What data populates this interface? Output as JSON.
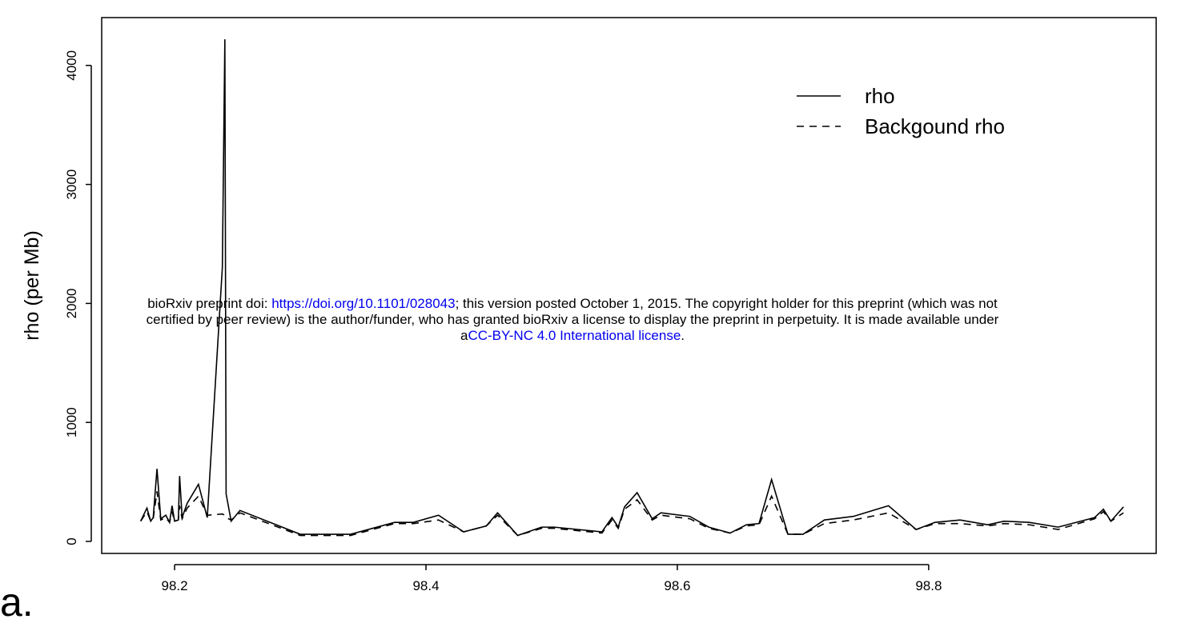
{
  "chart_data": {
    "type": "line",
    "y_label": "rho (per Mb)",
    "panel_label": "a.",
    "xlim": [
      98.142,
      98.981
    ],
    "ylim": [
      -101,
      4402
    ],
    "xticks": [
      98.2,
      98.4,
      98.6,
      98.8
    ],
    "yticks": [
      0,
      1000,
      2000,
      3000,
      4000
    ],
    "legend_position": "upper right",
    "x": [
      98.173,
      98.178,
      98.181,
      98.183,
      98.186,
      98.189,
      98.193,
      98.196,
      98.198,
      98.2,
      98.203,
      98.204,
      98.206,
      98.21,
      98.219,
      98.226,
      98.238,
      98.24,
      98.241,
      98.245,
      98.252,
      98.3,
      98.34,
      98.375,
      98.39,
      98.41,
      98.43,
      98.448,
      98.457,
      98.473,
      98.492,
      98.502,
      98.54,
      98.548,
      98.553,
      98.558,
      98.568,
      98.58,
      98.587,
      98.61,
      98.625,
      98.642,
      98.655,
      98.665,
      98.675,
      98.688,
      98.7,
      98.717,
      98.74,
      98.768,
      98.79,
      98.805,
      98.825,
      98.847,
      98.86,
      98.88,
      98.903,
      98.932,
      98.939,
      98.945,
      98.955
    ],
    "series": [
      {
        "name": "rho",
        "color": "#000000",
        "style": "solid",
        "values": [
          170,
          280,
          170,
          200,
          610,
          190,
          220,
          160,
          300,
          170,
          180,
          550,
          200,
          320,
          480,
          200,
          2300,
          4220,
          400,
          170,
          260,
          60,
          60,
          160,
          160,
          220,
          80,
          130,
          240,
          50,
          120,
          120,
          80,
          200,
          120,
          290,
          410,
          190,
          240,
          210,
          120,
          70,
          140,
          150,
          520,
          60,
          60,
          180,
          210,
          300,
          100,
          160,
          180,
          140,
          170,
          160,
          120,
          200,
          270,
          170,
          290
        ]
      },
      {
        "name": "Backgound rho",
        "color": "#000000",
        "style": "dashed",
        "values": [
          170,
          250,
          170,
          190,
          420,
          180,
          200,
          160,
          250,
          170,
          180,
          300,
          190,
          280,
          380,
          220,
          230,
          220,
          200,
          180,
          240,
          50,
          50,
          150,
          150,
          180,
          80,
          130,
          220,
          50,
          110,
          110,
          70,
          180,
          110,
          270,
          350,
          180,
          220,
          190,
          110,
          70,
          130,
          140,
          380,
          60,
          60,
          150,
          180,
          240,
          100,
          150,
          150,
          130,
          150,
          140,
          100,
          190,
          250,
          170,
          240
        ]
      }
    ],
    "watermark": [
      [
        {
          "text": "bioRxiv preprint doi: ",
          "link": false
        },
        {
          "text": "https://doi.org/10.1101/028043",
          "link": true
        },
        {
          "text": "; this version posted October 1, 2015. The copyright holder for this preprint (which was not",
          "link": false
        }
      ],
      [
        {
          "text": "certified by peer review) is the author/funder, who has granted bioRxiv a license to display the preprint in perpetuity. It is made available under",
          "link": false
        }
      ],
      [
        {
          "text": "a",
          "link": false
        },
        {
          "text": "CC-BY-NC 4.0 International license",
          "link": true
        },
        {
          "text": ".",
          "link": false
        }
      ]
    ]
  }
}
